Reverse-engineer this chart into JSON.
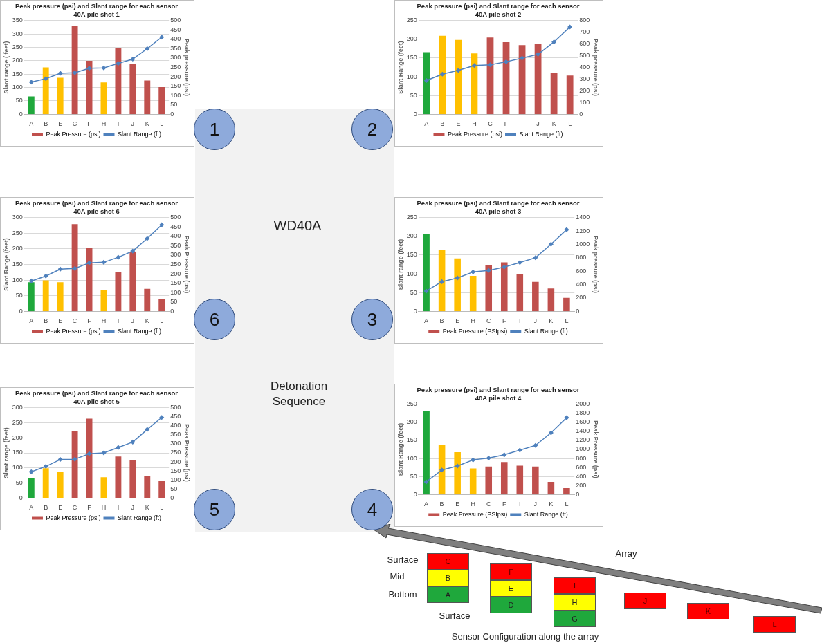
{
  "chart_data": [
    {
      "type": "bar",
      "title": "Peak pressure (psi) and Slant range for each sensor",
      "subtitle": "40A pile shot 1",
      "categories": [
        "A",
        "B",
        "E",
        "C",
        "F",
        "H",
        "I",
        "J",
        "K",
        "L"
      ],
      "ylabel": "Slant range ( feet)",
      "y2label": "Peak pressure (psi)",
      "ylim": [
        0,
        350
      ],
      "yticks": [
        0,
        50,
        100,
        150,
        200,
        250,
        300,
        350
      ],
      "y2lim": [
        0,
        500
      ],
      "y2ticks": [
        0,
        50,
        100,
        150,
        200,
        250,
        300,
        350,
        400,
        450,
        500
      ],
      "grid": "y",
      "legend": "bottom",
      "marker": "diamond",
      "series": [
        {
          "name": "Peak Pressure (psi)",
          "type": "bar",
          "axis": "y2",
          "color": "#c0504d",
          "colors": [
            "#1fa83c",
            "#ffc000",
            "#ffc000",
            "#c0504d",
            "#c0504d",
            "#ffc000",
            "#c0504d",
            "#c0504d",
            "#c0504d",
            "#c0504d"
          ],
          "values": [
            95,
            250,
            195,
            470,
            285,
            170,
            355,
            270,
            180,
            145
          ]
        },
        {
          "name": "Slant Range (ft)",
          "type": "line",
          "color": "#4f81bd",
          "values": [
            120,
            133,
            153,
            155,
            172,
            173,
            190,
            206,
            245,
            288
          ]
        }
      ]
    },
    {
      "type": "bar",
      "title": "Peak pressure (psi) and Slant range for each sensor",
      "subtitle": "40A pile shot 2",
      "categories": [
        "A",
        "B",
        "E",
        "H",
        "C",
        "F",
        "I",
        "J",
        "K",
        "L"
      ],
      "ylabel": "Slant Range (feet)",
      "y2label": "Peak pressure (psi)",
      "ylim": [
        0,
        250
      ],
      "yticks": [
        0,
        50,
        100,
        150,
        200,
        250
      ],
      "y2lim": [
        0,
        800
      ],
      "y2ticks": [
        0,
        100,
        200,
        300,
        400,
        500,
        600,
        700,
        800
      ],
      "grid": "y",
      "legend": "bottom",
      "marker": "diamond",
      "series": [
        {
          "name": "Peak Pressure (psi)",
          "type": "bar",
          "axis": "y2",
          "color": "#c0504d",
          "colors": [
            "#1fa83c",
            "#ffc000",
            "#ffc000",
            "#ffc000",
            "#c0504d",
            "#c0504d",
            "#c0504d",
            "#c0504d",
            "#c0504d",
            "#c0504d"
          ],
          "values": [
            530,
            670,
            635,
            520,
            655,
            615,
            590,
            600,
            355,
            330
          ]
        },
        {
          "name": "Slant Range (ft)",
          "type": "line",
          "color": "#4f81bd",
          "values": [
            90,
            107,
            117,
            130,
            132,
            140,
            150,
            160,
            193,
            233
          ]
        }
      ]
    },
    {
      "type": "bar",
      "title": "Peak pressure (psi) and Slant range for each sensor",
      "subtitle": "40A pile shot 6",
      "categories": [
        "A",
        "B",
        "E",
        "C",
        "F",
        "H",
        "I",
        "J",
        "K",
        "L"
      ],
      "ylabel": "Slant Range (feet)",
      "y2label": "Peak Pressure (psi)",
      "ylim": [
        0,
        300
      ],
      "yticks": [
        0,
        50,
        100,
        150,
        200,
        250,
        300
      ],
      "y2lim": [
        0,
        500
      ],
      "y2ticks": [
        0,
        50,
        100,
        150,
        200,
        250,
        300,
        350,
        400,
        450,
        500
      ],
      "grid": "y",
      "legend": "bottom",
      "marker": "diamond",
      "series": [
        {
          "name": "Peak Pressure (psi)",
          "type": "bar",
          "axis": "y2",
          "color": "#c0504d",
          "colors": [
            "#1fa83c",
            "#ffc000",
            "#ffc000",
            "#c0504d",
            "#c0504d",
            "#ffc000",
            "#c0504d",
            "#c0504d",
            "#c0504d",
            "#c0504d"
          ],
          "values": [
            155,
            165,
            155,
            465,
            340,
            115,
            210,
            315,
            120,
            65
          ]
        },
        {
          "name": "Slant Range (ft)",
          "type": "line",
          "color": "#4f81bd",
          "values": [
            97,
            113,
            135,
            137,
            155,
            157,
            173,
            193,
            233,
            277
          ]
        }
      ]
    },
    {
      "type": "bar",
      "title": "Peak pressure (psi) and Slant range for each sensor",
      "subtitle": "40A pile shot 3",
      "categories": [
        "A",
        "B",
        "E",
        "H",
        "C",
        "F",
        "I",
        "J",
        "K",
        "L"
      ],
      "ylabel": "Slant range (feet)",
      "y2label": "Peak pressure (psi)",
      "ylim": [
        0,
        250
      ],
      "yticks": [
        0,
        50,
        100,
        150,
        200,
        250
      ],
      "y2lim": [
        0,
        1400
      ],
      "y2ticks": [
        0,
        200,
        400,
        600,
        800,
        1000,
        1200,
        1400
      ],
      "grid": "y",
      "legend": "bottom",
      "marker": "diamond",
      "series": [
        {
          "name": "Peak Pressure (PSIpsi)",
          "type": "bar",
          "axis": "y2",
          "color": "#c0504d",
          "colors": [
            "#1fa83c",
            "#ffc000",
            "#ffc000",
            "#ffc000",
            "#c0504d",
            "#c0504d",
            "#c0504d",
            "#c0504d",
            "#c0504d",
            "#c0504d"
          ],
          "values": [
            1160,
            920,
            790,
            530,
            690,
            730,
            560,
            440,
            340,
            200
          ]
        },
        {
          "name": "Slant Range (ft)",
          "type": "line",
          "color": "#4f81bd",
          "values": [
            54,
            79,
            89,
            105,
            109,
            118,
            130,
            143,
            179,
            218
          ]
        }
      ]
    },
    {
      "type": "bar",
      "title": "Peak pressure (psi) and Slant range for each sensor",
      "subtitle": "40A pile shot 5",
      "categories": [
        "A",
        "B",
        "E",
        "C",
        "F",
        "H",
        "I",
        "J",
        "K",
        "L"
      ],
      "ylabel": "Slant range (feet)",
      "y2label": "Peak Pressure (psi)",
      "ylim": [
        0,
        300
      ],
      "yticks": [
        0,
        50,
        100,
        150,
        200,
        250,
        300
      ],
      "y2lim": [
        0,
        500
      ],
      "y2ticks": [
        0,
        50,
        100,
        150,
        200,
        250,
        300,
        350,
        400,
        450,
        500
      ],
      "grid": "y",
      "legend": "bottom",
      "marker": "diamond",
      "series": [
        {
          "name": "Peak Pressure (psi)",
          "type": "bar",
          "axis": "y2",
          "color": "#c0504d",
          "colors": [
            "#1fa83c",
            "#ffc000",
            "#ffc000",
            "#c0504d",
            "#c0504d",
            "#ffc000",
            "#c0504d",
            "#c0504d",
            "#c0504d",
            "#c0504d"
          ],
          "values": [
            110,
            165,
            145,
            370,
            440,
            115,
            230,
            210,
            120,
            95
          ]
        },
        {
          "name": "Slant Range (ft)",
          "type": "line",
          "color": "#4f81bd",
          "values": [
            87,
            105,
            128,
            129,
            147,
            150,
            168,
            186,
            228,
            268
          ]
        }
      ]
    },
    {
      "type": "bar",
      "title": "Peak pressure (psi) and Slant range for each sensor",
      "subtitle": "40A pile shot 4",
      "categories": [
        "A",
        "B",
        "E",
        "H",
        "C",
        "F",
        "I",
        "J",
        "K",
        "L"
      ],
      "ylabel": "Slant Range (feet)",
      "y2label": "Peak Pressure (psi)",
      "ylim": [
        0,
        250
      ],
      "yticks": [
        0,
        50,
        100,
        150,
        200,
        250
      ],
      "y2lim": [
        0,
        2000
      ],
      "y2ticks": [
        0,
        200,
        400,
        600,
        800,
        1000,
        1200,
        1400,
        1600,
        1800,
        2000
      ],
      "grid": "y",
      "legend": "bottom",
      "marker": "diamond",
      "series": [
        {
          "name": "Peak Pressure (PSIpsi)",
          "type": "bar",
          "axis": "y2",
          "color": "#c0504d",
          "colors": [
            "#1fa83c",
            "#ffc000",
            "#ffc000",
            "#ffc000",
            "#c0504d",
            "#c0504d",
            "#c0504d",
            "#c0504d",
            "#c0504d",
            "#c0504d"
          ],
          "values": [
            1860,
            1100,
            940,
            580,
            620,
            720,
            640,
            620,
            280,
            140
          ]
        },
        {
          "name": "Slant Range (ft)",
          "type": "line",
          "color": "#4f81bd",
          "values": [
            35,
            68,
            79,
            96,
            101,
            110,
            123,
            136,
            171,
            213
          ]
        }
      ]
    },
    {
      "type": "other",
      "annotations": [
        "1",
        "2",
        "3",
        "4",
        "5",
        "6",
        "WD40A",
        "Detonation Sequence",
        "Array",
        "Surface",
        "Mid",
        "Bottom",
        "Surface",
        "Sensor Configuration along the array",
        "C",
        "B",
        "A",
        "F",
        "E",
        "D",
        "I",
        "H",
        "G",
        "J",
        "K",
        "L"
      ]
    }
  ]
}
